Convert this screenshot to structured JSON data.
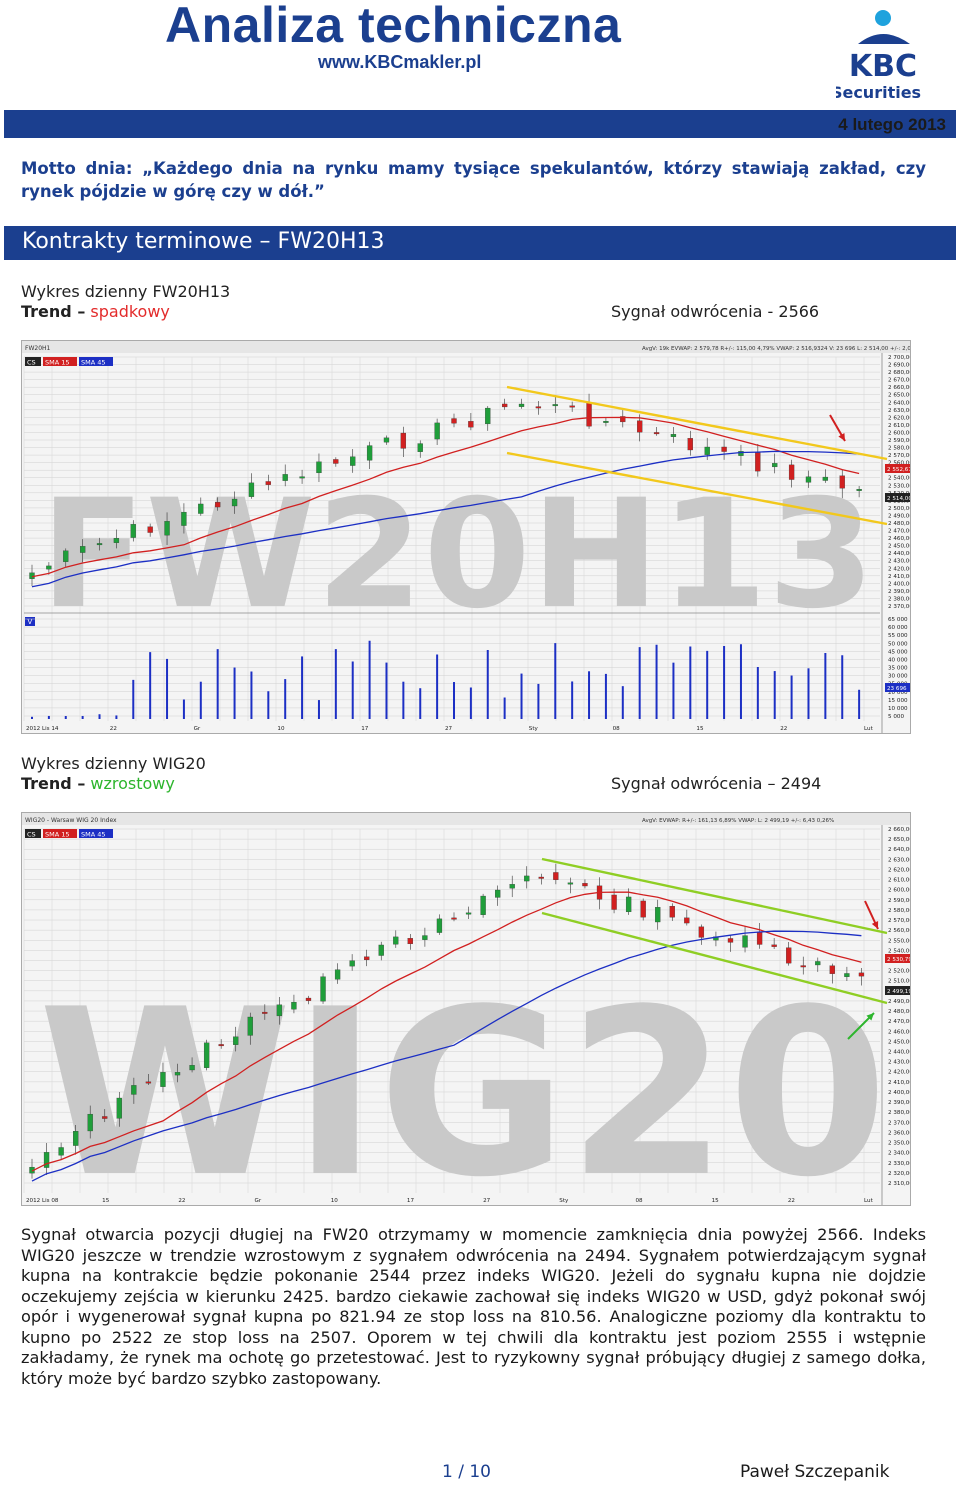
{
  "header": {
    "title": "Analiza techniczna",
    "website": "www.KBCmakler.pl",
    "logo_text_top": "KBC",
    "logo_text_bottom": "Securities",
    "date": "4 lutego 2013"
  },
  "motto": "Motto dnia: „Każdego dnia na rynku mamy tysiące spekulantów, którzy stawiają zakład, czy rynek pójdzie w górę czy w dół.”",
  "section": {
    "title": "Kontrakty terminowe – FW20H13"
  },
  "chart1": {
    "heading": "Wykres dzienny FW20H13",
    "trend_label": "Trend –",
    "trend_value": "spadkowy",
    "signal": "Sygnał odwrócenia - 2566",
    "watermark": "FW20H13",
    "window_title": "FW20H1",
    "legend": [
      "CS",
      "SMA 15",
      "SMA 45"
    ],
    "info_line": "AvgV: 19k  EVWAP: 2 579,78  R+/-: 115,00  4,79%  VWAP: 2 516,9324  V: 23 696  L: 2 514,00  +/-: 2,00  0,08%",
    "price_ticks": [
      "2 700,00",
      "2 690,00",
      "2 680,00",
      "2 670,00",
      "2 660,00",
      "2 650,00",
      "2 640,00",
      "2 630,00",
      "2 620,00",
      "2 610,00",
      "2 600,00",
      "2 590,00",
      "2 580,00",
      "2 570,00",
      "2 560,00",
      "2 550,00",
      "2 540,00",
      "2 530,00",
      "2 520,00",
      "2 510,00",
      "2 500,00",
      "2 490,00",
      "2 480,00",
      "2 470,00",
      "2 460,00",
      "2 450,00",
      "2 440,00",
      "2 430,00",
      "2 420,00",
      "2 410,00",
      "2 400,00",
      "2 390,00",
      "2 380,00",
      "2 370,00"
    ],
    "price_markers": [
      "2 552,67",
      "2 514,00"
    ],
    "volume_label": "V",
    "volume_ticks": [
      "65 000",
      "60 000",
      "55 000",
      "50 000",
      "45 000",
      "40 000",
      "35 000",
      "30 000",
      "25 000",
      "20 000",
      "15 000",
      "10 000",
      "5 000"
    ],
    "volume_marker": "23 696",
    "date_ticks": [
      "2012 Lis 14",
      "22",
      "Gr",
      "10",
      "17",
      "27",
      "Sty",
      "08",
      "15",
      "22",
      "Lut"
    ]
  },
  "chart2": {
    "heading": "Wykres dzienny WIG20",
    "trend_label": "Trend –",
    "trend_value": "wzrostowy",
    "signal": "Sygnał odwrócenia – 2494",
    "watermark": "WIG20",
    "window_title": "WIG20 - Warsaw WIG 20 Index",
    "legend": [
      "CS",
      "SMA 15",
      "SMA 45"
    ],
    "info_line": "AvgV:  EVWAP:  R+/-: 161,13  6,89%  VWAP:  L: 2 499,19  +/-: 6,43  0,26%",
    "price_ticks": [
      "2 660,00",
      "2 650,00",
      "2 640,00",
      "2 630,00",
      "2 620,00",
      "2 610,00",
      "2 600,00",
      "2 590,00",
      "2 580,00",
      "2 570,00",
      "2 560,00",
      "2 550,00",
      "2 540,00",
      "2 530,00",
      "2 520,00",
      "2 510,00",
      "2 500,00",
      "2 490,00",
      "2 480,00",
      "2 470,00",
      "2 460,00",
      "2 450,00",
      "2 440,00",
      "2 430,00",
      "2 420,00",
      "2 410,00",
      "2 400,00",
      "2 390,00",
      "2 380,00",
      "2 370,00",
      "2 360,00",
      "2 350,00",
      "2 340,00",
      "2 330,00",
      "2 320,00",
      "2 310,00"
    ],
    "price_markers": [
      "2 530,79",
      "2 499,19"
    ],
    "date_ticks": [
      "2012 Lis 08",
      "15",
      "22",
      "Gr",
      "10",
      "17",
      "27",
      "Sty",
      "08",
      "15",
      "22",
      "Lut"
    ]
  },
  "body_text": "Sygnał otwarcia pozycji długiej na FW20 otrzymamy w momencie zamknięcia dnia powyżej 2566. Indeks WIG20 jeszcze w trendzie wzrostowym z sygnałem odwrócenia na 2494. Sygnałem potwierdzającym sygnał kupna na kontrakcie będzie pokonanie 2544 przez indeks WIG20. Jeżeli do sygnału kupna nie dojdzie oczekujemy zejścia w kierunku 2425. bardzo ciekawie zachował się indeks WIG20 w USD, gdyż pokonał swój opór i wygenerował sygnał kupna po 821.94 ze stop loss na 810.56. Analogiczne poziomy dla kontraktu to kupno po 2522 ze stop loss na 2507. Oporem w tej chwili dla kontraktu jest poziom 2555 i wstępnie zakładamy, że rynek ma ochotę go przetestować. Jest to ryzykowny sygnał próbujący długiej z samego dołka, który może być bardzo szybko zastopowany.",
  "footer": {
    "page": "1 / 10",
    "author": "Paweł Szczepanik"
  },
  "colors": {
    "brand_blue": "#1b3f8f",
    "trend_down": "#e32b2b",
    "trend_up": "#2db52d",
    "candle_up": "#1f9e3a",
    "candle_down": "#d12020",
    "sma15": "#d12020",
    "sma45": "#1c2fc4",
    "fw_trend_lines": "#f2c81c",
    "wig_trend_lines": "#8fce24"
  },
  "chart_data": [
    {
      "type": "candlestick",
      "title": "FW20H1",
      "series": [
        {
          "name": "SMA 15"
        },
        {
          "name": "SMA 45"
        }
      ],
      "ylim": [
        2370,
        2700
      ],
      "volume_ylim": [
        0,
        65000
      ],
      "grid": true,
      "legend": "top-left"
    },
    {
      "type": "candlestick",
      "title": "WIG20 - Warsaw WIG 20 Index",
      "series": [
        {
          "name": "SMA 15"
        },
        {
          "name": "SMA 45"
        }
      ],
      "ylim": [
        2310,
        2660
      ],
      "grid": true,
      "legend": "top-left"
    }
  ]
}
